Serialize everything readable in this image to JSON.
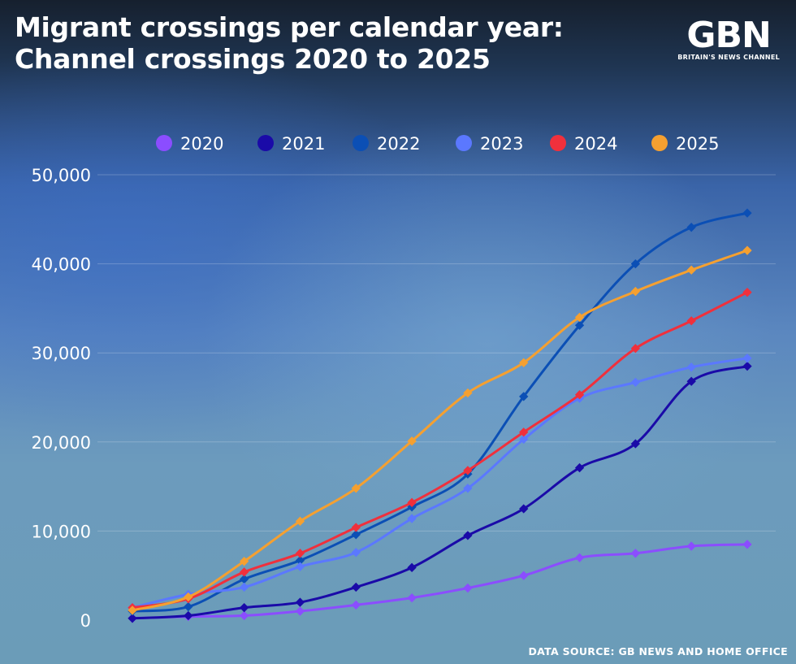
{
  "title_line1": "Migrant crossings per calendar year:",
  "title_line2": "Channel crossings 2020 to 2025",
  "logo": {
    "mark": "GBN",
    "tagline": "BRITAIN'S NEWS CHANNEL"
  },
  "source": "DATA SOURCE: GB NEWS AND HOME OFFICE",
  "chart_data": {
    "type": "line",
    "title": "Migrant crossings per calendar year: Channel crossings 2020 to 2025",
    "x": [
      1,
      2,
      3,
      4,
      5,
      6,
      7,
      8,
      9,
      10,
      11,
      12
    ],
    "ylim": [
      0,
      50000
    ],
    "yticks": [
      0,
      10000,
      20000,
      30000,
      40000,
      50000
    ],
    "ytick_labels": [
      "0",
      "10,000",
      "20,000",
      "30,000",
      "40,000",
      "50,000"
    ],
    "grid": true,
    "legend_placement": "top",
    "series": [
      {
        "name": "2020",
        "color": "#8b4dff",
        "values": [
          200,
          400,
          500,
          1000,
          1700,
          2500,
          3600,
          5000,
          7000,
          7500,
          8300,
          8500
        ]
      },
      {
        "name": "2021",
        "color": "#1a0aa8",
        "values": [
          200,
          500,
          1400,
          2000,
          3700,
          5900,
          9500,
          12500,
          17100,
          19800,
          26800,
          28500
        ]
      },
      {
        "name": "2022",
        "color": "#0b4fb5",
        "values": [
          1000,
          1500,
          4600,
          6700,
          9600,
          12700,
          16400,
          25100,
          33100,
          40000,
          44100,
          45700
        ]
      },
      {
        "name": "2023",
        "color": "#5b78ff",
        "values": [
          1400,
          2900,
          3700,
          6000,
          7600,
          11400,
          14800,
          20300,
          24900,
          26700,
          28400,
          29400
        ]
      },
      {
        "name": "2024",
        "color": "#f0303c",
        "values": [
          1400,
          2400,
          5400,
          7500,
          10400,
          13200,
          16800,
          21100,
          25300,
          30500,
          33600,
          36800
        ]
      },
      {
        "name": "2025",
        "color": "#f5a030",
        "values": [
          1100,
          2600,
          6600,
          11100,
          14800,
          20100,
          25500,
          28900,
          34000,
          36900,
          39300,
          41500
        ]
      }
    ]
  }
}
